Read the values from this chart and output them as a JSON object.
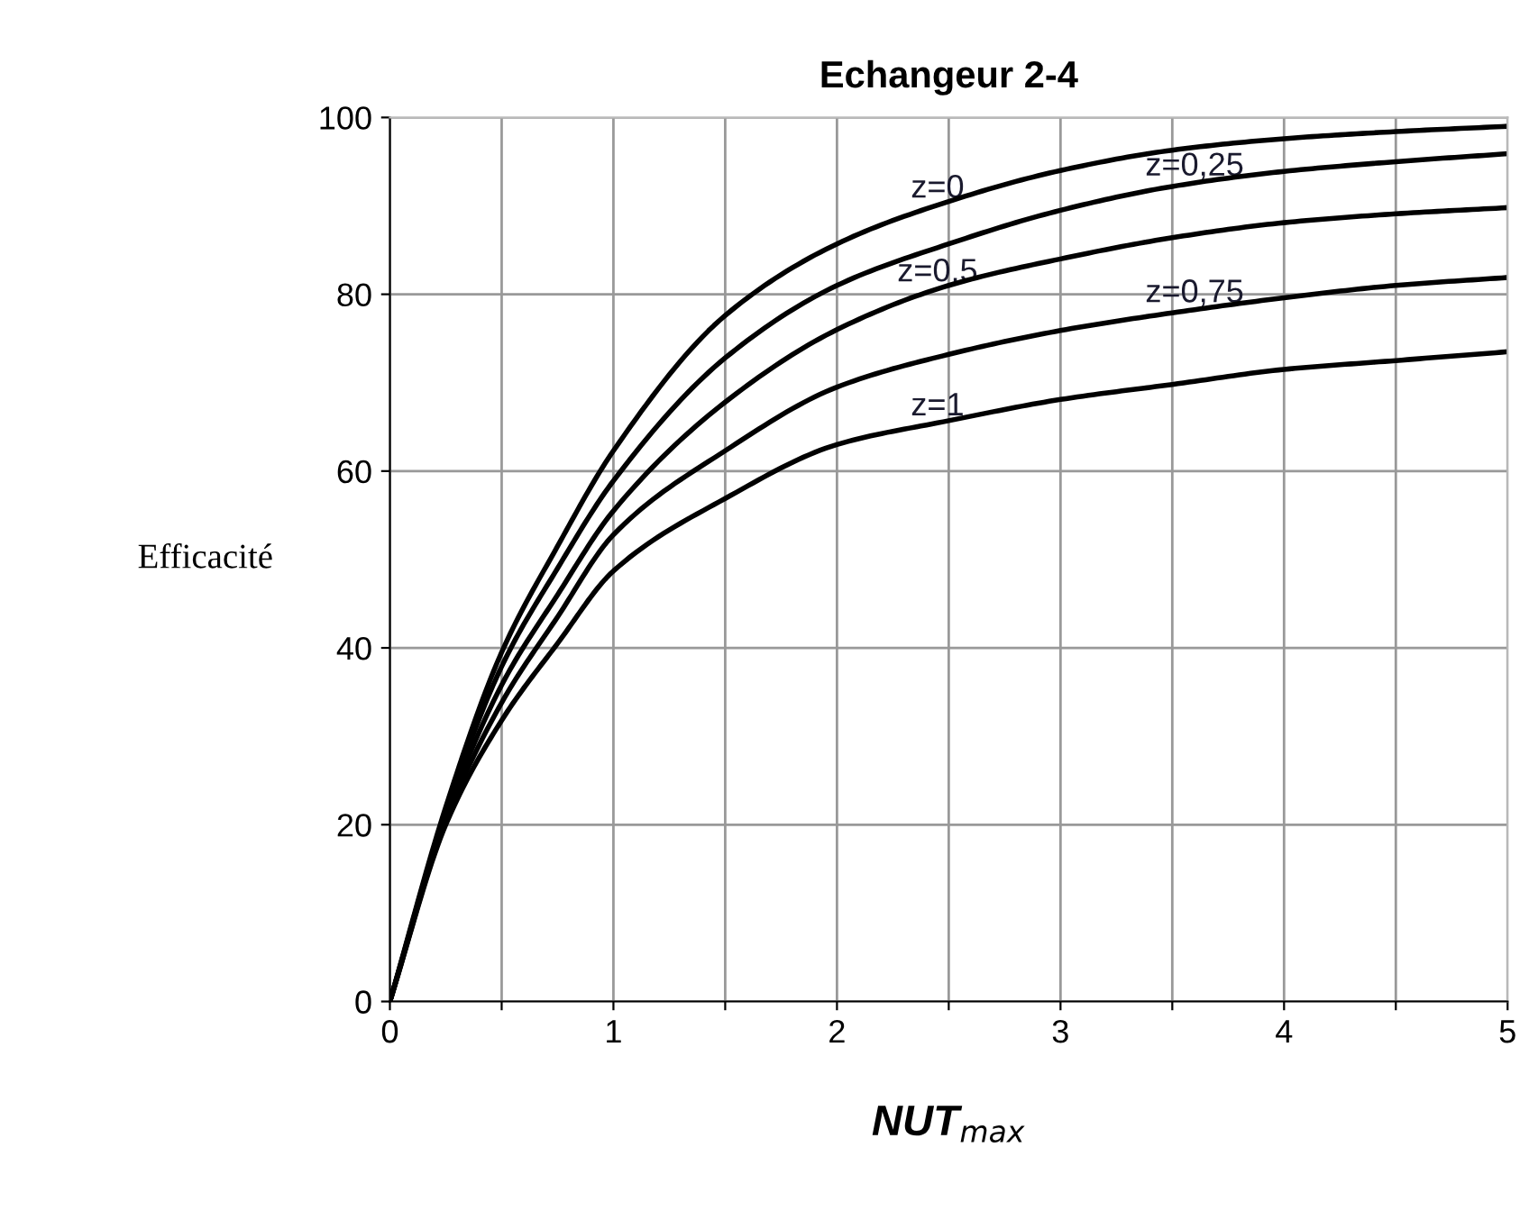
{
  "chart_data": {
    "type": "line",
    "title": "Echangeur 2-4",
    "xlabel": "NUT$_{max}$",
    "ylabel": "Efficacité",
    "x": [
      0,
      0.25,
      0.5,
      0.75,
      1,
      1.5,
      2,
      2.5,
      3,
      3.5,
      4,
      4.5,
      5
    ],
    "series": [
      {
        "color": "#000000",
        "values": [
          0,
          22,
          39.5,
          51.5,
          62.3,
          77.6,
          85.7,
          90.5,
          94.0,
          96.3,
          97.6,
          98.4,
          99.0
        ]
      },
      {
        "color": "#000000",
        "values": [
          0,
          21.5,
          37.9,
          49,
          58.9,
          72.8,
          81.0,
          85.7,
          89.5,
          92.2,
          93.9,
          95.0,
          95.9
        ]
      },
      {
        "color": "#000000",
        "values": [
          0,
          21,
          35.8,
          46,
          55.5,
          67.8,
          76.0,
          81.0,
          84.0,
          86.4,
          88.1,
          89.1,
          89.8
        ]
      },
      {
        "color": "#000000",
        "values": [
          0,
          20.5,
          33.8,
          43.5,
          52.8,
          62.3,
          69.5,
          73.2,
          75.9,
          77.9,
          79.6,
          81.0,
          81.9
        ]
      },
      {
        "color": "#000000",
        "values": [
          0,
          20,
          31.8,
          40.5,
          48.7,
          56.9,
          63.0,
          65.7,
          68.1,
          69.8,
          71.5,
          72.5,
          73.5
        ]
      }
    ],
    "annotations": [
      "z=0",
      "z=0,25",
      "z=0,5",
      "z=0,75",
      "z=1"
    ],
    "xlim": [
      0,
      5
    ],
    "ylim": [
      0,
      100
    ],
    "xticks": [
      0,
      {
        "value": 0.5,
        "label": null
      },
      1,
      {
        "value": 1.5,
        "label": null
      },
      2,
      {
        "value": 2.5,
        "label": null
      },
      3,
      {
        "value": 3.5,
        "label": null
      },
      4,
      {
        "value": 4.5,
        "label": null
      },
      5
    ],
    "yticks": [
      0,
      20,
      40,
      60,
      80,
      100
    ],
    "grid": true,
    "legend": false,
    "marker": "none",
    "line_style": "solid"
  }
}
